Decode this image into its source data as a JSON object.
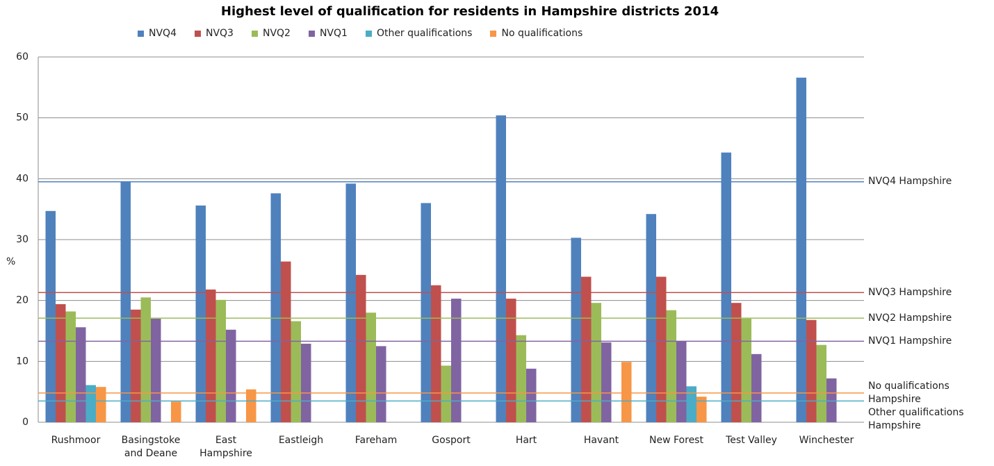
{
  "chart_data": {
    "type": "bar",
    "title": "Highest level of qualification for residents in Hampshire districts 2014",
    "y_label": "%",
    "categories": [
      "Rushmoor",
      "Basingstoke and Deane",
      "East Hampshire",
      "Eastleigh",
      "Fareham",
      "Gosport",
      "Hart",
      "Havant",
      "New Forest",
      "Test Valley",
      "Winchester"
    ],
    "series": [
      {
        "name": "NVQ4",
        "color": "#4f81bd",
        "values": [
          34.7,
          39.5,
          35.6,
          37.6,
          39.2,
          36.0,
          50.4,
          30.3,
          34.2,
          44.3,
          56.6
        ]
      },
      {
        "name": "NVQ3",
        "color": "#c0504d",
        "values": [
          19.4,
          18.5,
          21.8,
          26.4,
          24.2,
          22.5,
          20.3,
          23.9,
          23.9,
          19.6,
          16.8
        ]
      },
      {
        "name": "NVQ2",
        "color": "#9bbb59",
        "values": [
          18.2,
          20.5,
          20.1,
          16.6,
          18.0,
          9.3,
          14.3,
          19.6,
          18.4,
          17.0,
          12.7
        ]
      },
      {
        "name": "NVQ1",
        "color": "#8064a2",
        "values": [
          15.6,
          17.0,
          15.2,
          12.9,
          12.5,
          20.3,
          8.8,
          13.1,
          13.3,
          11.2,
          7.2
        ]
      },
      {
        "name": "Other qualifications",
        "color": "#4bacc6",
        "values": [
          6.1,
          null,
          null,
          null,
          null,
          null,
          null,
          null,
          5.9,
          null,
          null
        ]
      },
      {
        "name": "No qualifications",
        "color": "#f79646",
        "values": [
          5.8,
          3.4,
          5.4,
          null,
          null,
          null,
          null,
          9.9,
          4.2,
          null,
          null
        ]
      }
    ],
    "reference_lines": [
      {
        "name": "NVQ4 Hampshire",
        "value": 39.5,
        "color": "#4f81bd"
      },
      {
        "name": "NVQ3 Hampshire",
        "value": 21.3,
        "color": "#c0504d"
      },
      {
        "name": "NVQ2 Hampshire",
        "value": 17.1,
        "color": "#9bbb59"
      },
      {
        "name": "NVQ1 Hampshire",
        "value": 13.3,
        "color": "#8064a2"
      },
      {
        "name": "No qualifications Hampshire",
        "value": 4.8,
        "color": "#f79646"
      },
      {
        "name": "Other qualifications Hampshire",
        "value": 3.5,
        "color": "#4bacc6"
      }
    ],
    "ylim": [
      0,
      60
    ],
    "yticks": [
      0,
      10,
      20,
      30,
      40,
      50,
      60
    ],
    "grid": true
  }
}
